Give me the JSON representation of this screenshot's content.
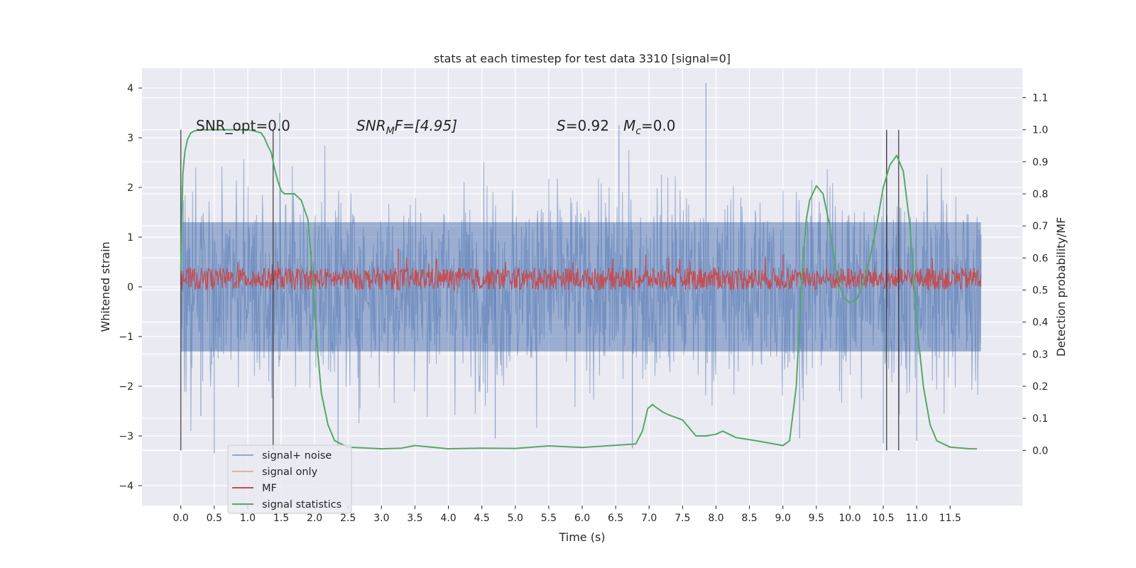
{
  "chart_data": {
    "type": "line",
    "title": "stats at each timestep for test data 3310 [signal=0]",
    "xlabel": "Time (s)",
    "ylabel": "Whitened strain",
    "y2label": "Detection probability/MF",
    "xlim": [
      -0.58,
      12.58
    ],
    "ylim": [
      -4.4,
      4.4
    ],
    "y2lim": [
      -0.172,
      1.192
    ],
    "x_ticks": [
      "0.0",
      "0.5",
      "1.0",
      "1.5",
      "2.0",
      "2.5",
      "3.0",
      "3.5",
      "4.0",
      "4.5",
      "5.0",
      "5.5",
      "6.0",
      "6.5",
      "7.0",
      "7.5",
      "8.0",
      "8.5",
      "9.0",
      "9.5",
      "10.0",
      "10.5",
      "11.0",
      "11.5"
    ],
    "y_ticks": [
      "4",
      "3",
      "2",
      "1",
      "0",
      "−1",
      "−2",
      "−3",
      "−4"
    ],
    "y2_ticks": [
      "1.1",
      "1.0",
      "0.9",
      "0.8",
      "0.7",
      "0.6",
      "0.5",
      "0.4",
      "0.3",
      "0.2",
      "0.1",
      "0.0"
    ],
    "grid": true,
    "legend_position": "lower-left",
    "annotations": {
      "snr_opt": "SNR_opt=0.0",
      "snr_mf_sym": "SNR",
      "snr_mf_sub": "M",
      "snr_mf_rest": "F=[4.95]",
      "s_sym": "S",
      "s_val": "=0.92",
      "mc_sym": "M",
      "mc_sub": "c",
      "mc_val": "=0.0"
    },
    "vertical_markers_s": [
      0.0,
      1.38,
      10.55,
      10.73
    ],
    "series": [
      {
        "name": "signal+ noise",
        "color": "#4c72b0",
        "axis": "left",
        "x_range": [
          0.0,
          11.96
        ],
        "typical_band": [
          -1.3,
          1.3
        ],
        "peaks": [
          [
            0.3,
            -2.6
          ],
          [
            0.5,
            -3.35
          ],
          [
            1.48,
            3.5
          ],
          [
            2.35,
            -3.2
          ],
          [
            4.7,
            -3.05
          ],
          [
            6.55,
            3.25
          ],
          [
            6.75,
            -3.25
          ],
          [
            7.85,
            4.1
          ],
          [
            9.25,
            -3.05
          ],
          [
            10.5,
            -3.15
          ],
          [
            10.55,
            3.1
          ],
          [
            11.0,
            -3.1
          ],
          [
            11.96,
            1.05
          ]
        ]
      },
      {
        "name": "signal only",
        "color": "#dd8452",
        "axis": "left",
        "values_note_zero": 0
      },
      {
        "name": "MF",
        "color": "#c44e52",
        "axis": "right",
        "x_range": [
          0.0,
          11.96
        ],
        "typical_band": [
          0.5,
          0.57
        ],
        "peaks": [
          [
            3.25,
            0.63
          ],
          [
            1.95,
            0.62
          ],
          [
            6.95,
            0.61
          ],
          [
            9.0,
            0.61
          ]
        ]
      },
      {
        "name": "signal statistics",
        "color": "#55a868",
        "axis": "right",
        "x": [
          0.0,
          0.03,
          0.06,
          0.1,
          0.15,
          0.2,
          0.3,
          0.5,
          0.8,
          1.0,
          1.1,
          1.2,
          1.25,
          1.3,
          1.35,
          1.4,
          1.45,
          1.5,
          1.55,
          1.6,
          1.7,
          1.8,
          1.9,
          1.95,
          2.0,
          2.05,
          2.1,
          2.2,
          2.3,
          2.5,
          3.0,
          3.3,
          3.5,
          4.0,
          4.5,
          5.0,
          5.5,
          6.0,
          6.5,
          6.8,
          6.9,
          6.98,
          7.05,
          7.1,
          7.2,
          7.3,
          7.5,
          7.7,
          7.85,
          8.0,
          8.1,
          8.3,
          8.6,
          9.0,
          9.1,
          9.2,
          9.25,
          9.3,
          9.35,
          9.4,
          9.5,
          9.6,
          9.7,
          9.8,
          9.9,
          10.0,
          10.1,
          10.2,
          10.3,
          10.4,
          10.5,
          10.6,
          10.7,
          10.8,
          10.9,
          10.95,
          11.0,
          11.1,
          11.2,
          11.3,
          11.5,
          11.8,
          11.9
        ],
        "values": [
          0.56,
          0.86,
          0.93,
          0.97,
          0.99,
          0.996,
          1.0,
          1.0,
          1.0,
          1.0,
          0.996,
          0.99,
          0.975,
          0.95,
          0.93,
          0.88,
          0.84,
          0.81,
          0.8,
          0.8,
          0.8,
          0.78,
          0.72,
          0.6,
          0.45,
          0.3,
          0.18,
          0.08,
          0.03,
          0.01,
          0.005,
          0.007,
          0.015,
          0.005,
          0.007,
          0.006,
          0.014,
          0.009,
          0.016,
          0.02,
          0.06,
          0.13,
          0.143,
          0.135,
          0.12,
          0.11,
          0.095,
          0.045,
          0.045,
          0.05,
          0.06,
          0.04,
          0.03,
          0.015,
          0.03,
          0.2,
          0.4,
          0.6,
          0.72,
          0.78,
          0.825,
          0.8,
          0.7,
          0.55,
          0.48,
          0.46,
          0.47,
          0.52,
          0.6,
          0.7,
          0.82,
          0.89,
          0.92,
          0.87,
          0.7,
          0.55,
          0.4,
          0.2,
          0.08,
          0.03,
          0.01,
          0.005,
          0.005
        ]
      }
    ]
  }
}
